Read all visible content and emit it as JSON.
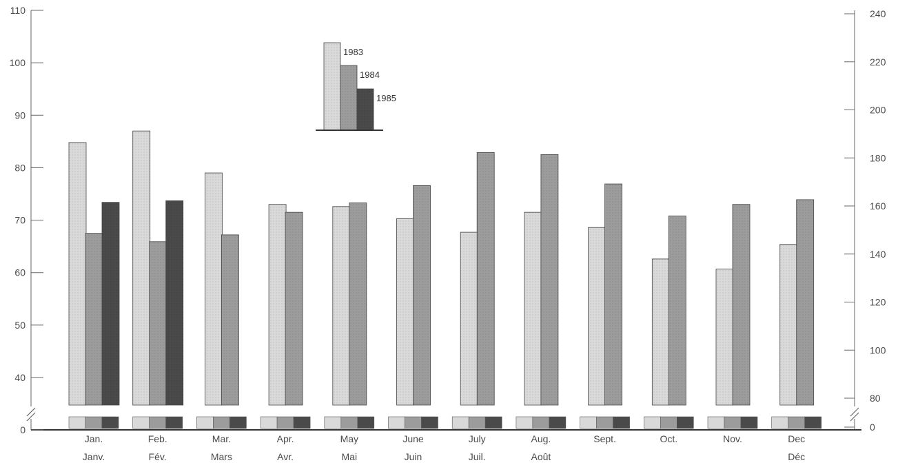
{
  "chart_data": {
    "type": "bar",
    "categories": [
      "Jan.",
      "Feb.",
      "Mar.",
      "Apr.",
      "May",
      "June",
      "July",
      "Aug.",
      "Sept.",
      "Oct.",
      "Nov.",
      "Dec"
    ],
    "categories_fr": [
      "Janv.",
      "Fév.",
      "Mars",
      "Avr.",
      "Mai",
      "Juin",
      "Juil.",
      "Août",
      "",
      "",
      "",
      "Déc"
    ],
    "series": [
      {
        "name": "1983",
        "color": "#d9d9d9",
        "values": [
          84.8,
          87,
          79,
          73,
          72.6,
          70.3,
          67.7,
          71.5,
          68.6,
          62.6,
          60.7,
          65.4
        ]
      },
      {
        "name": "1984",
        "color": "#9c9c9c",
        "values": [
          67.5,
          65.9,
          67.2,
          71.5,
          73.3,
          76.6,
          82.9,
          82.5,
          76.9,
          70.8,
          73,
          73.9
        ]
      },
      {
        "name": "1985",
        "color": "#4a4a4a",
        "values": [
          73.4,
          73.7,
          null,
          null,
          null,
          null,
          null,
          null,
          null,
          null,
          null,
          null
        ]
      }
    ],
    "left_axis": {
      "ticks": [
        "0",
        "40",
        "50",
        "60",
        "70",
        "80",
        "90",
        "100",
        "110"
      ],
      "ylim": [
        35,
        110
      ],
      "broken": true
    },
    "right_axis": {
      "ticks": [
        "0",
        "80",
        "100",
        "120",
        "140",
        "160",
        "180",
        "200",
        "220",
        "240"
      ],
      "broken": true
    },
    "legend_position": "top-center",
    "title": "",
    "xlabel": "",
    "ylabel": ""
  }
}
